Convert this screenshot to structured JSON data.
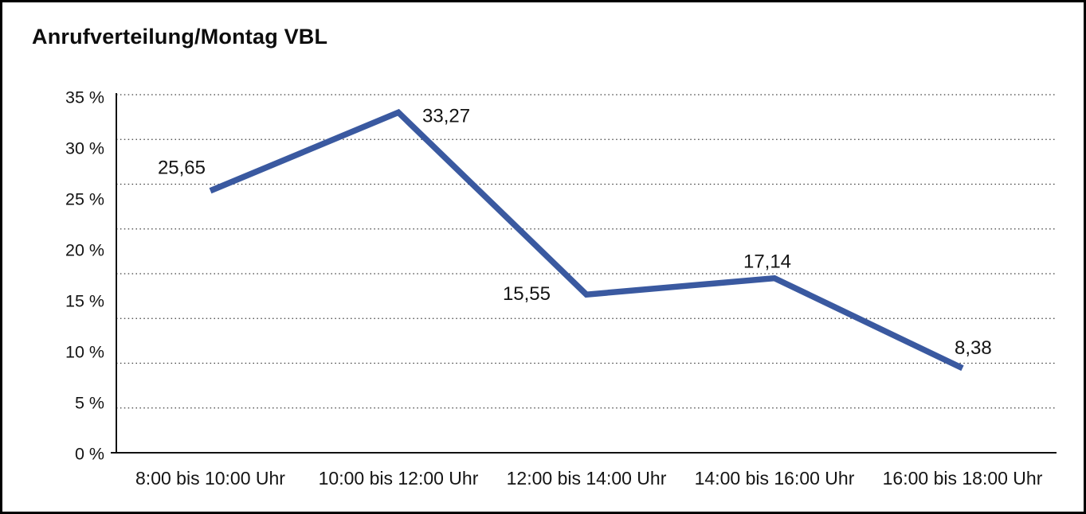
{
  "chart_data": {
    "type": "line",
    "title": "Anrufverteilung/Montag VBL",
    "categories": [
      "8:00 bis 10:00 Uhr",
      "10:00 bis 12:00 Uhr",
      "12:00 bis 14:00 Uhr",
      "14:00 bis 16:00 Uhr",
      "16:00 bis 18:00 Uhr"
    ],
    "values": [
      25.65,
      33.27,
      15.55,
      17.14,
      8.38
    ],
    "value_labels": [
      "25,65",
      "33,27",
      "15,55",
      "17,14",
      "8,38"
    ],
    "y_ticks": [
      "35 %",
      "30 %",
      "25 %",
      "20 %",
      "15 %",
      "10 %",
      "5 %",
      "0 %"
    ],
    "ylim": [
      0,
      35
    ],
    "xlabel": "",
    "ylabel": "",
    "grid": "horizontal-dotted",
    "legend": "none",
    "line_color": "#3a59a0",
    "axis_color": "#111111",
    "grid_color": "#3c3c3c",
    "text_color": "#141414"
  }
}
